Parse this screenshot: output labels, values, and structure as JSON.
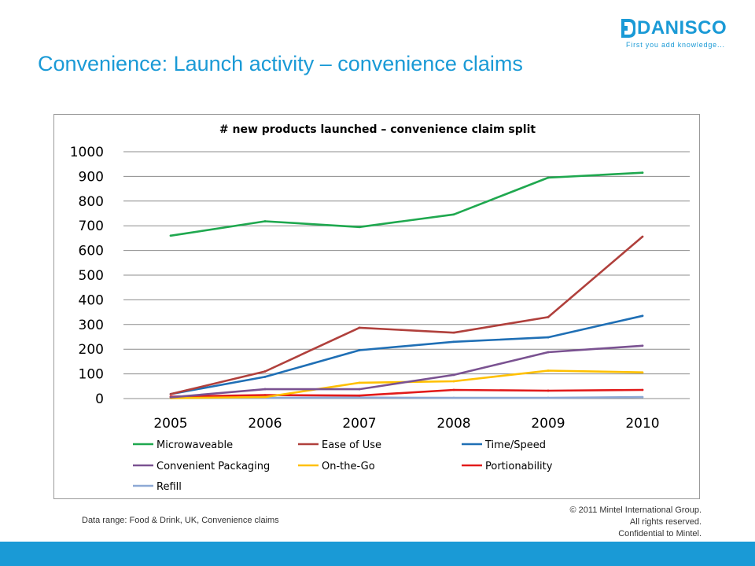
{
  "header": {
    "title": "Convenience: Launch activity – convenience claims",
    "logo_text": "DANISCO",
    "logo_tagline": "First you add knowledge...",
    "brand_color": "#1a9ad6"
  },
  "footer": {
    "data_range": "Data range: Food & Drink, UK, Convenience claims",
    "copyright_lines": [
      "© 2011 Mintel International Group.",
      "All rights reserved.",
      "Confidential to Mintel."
    ]
  },
  "chart_data": {
    "type": "line",
    "title": "# new products launched – convenience claim split",
    "xlabel": "",
    "ylabel": "",
    "categories": [
      "2005",
      "2006",
      "2007",
      "2008",
      "2009",
      "2010"
    ],
    "ylim": [
      0,
      1000
    ],
    "yticks": [
      "0",
      "100",
      "200",
      "300",
      "400",
      "500",
      "600",
      "700",
      "800",
      "900",
      "1000"
    ],
    "grid": true,
    "legend_position": "bottom",
    "series": [
      {
        "name": "Microwaveable",
        "color": "#1fa84f",
        "values": [
          660,
          718,
          695,
          746,
          895,
          915
        ]
      },
      {
        "name": "Ease of Use",
        "color": "#b0403c",
        "values": [
          18,
          110,
          287,
          267,
          330,
          656
        ]
      },
      {
        "name": "Time/Speed",
        "color": "#1f6fb5",
        "values": [
          18,
          88,
          196,
          230,
          248,
          335
        ]
      },
      {
        "name": "Convenient Packaging",
        "color": "#7a5291",
        "values": [
          5,
          38,
          38,
          96,
          188,
          214
        ]
      },
      {
        "name": "On-the-Go",
        "color": "#ffc000",
        "values": [
          2,
          6,
          64,
          70,
          113,
          106
        ]
      },
      {
        "name": "Portionability",
        "color": "#e21a1a",
        "values": [
          8,
          14,
          12,
          35,
          32,
          35
        ]
      },
      {
        "name": "Refill",
        "color": "#8ea9d5",
        "values": [
          2,
          3,
          4,
          3,
          3,
          6
        ]
      }
    ]
  }
}
